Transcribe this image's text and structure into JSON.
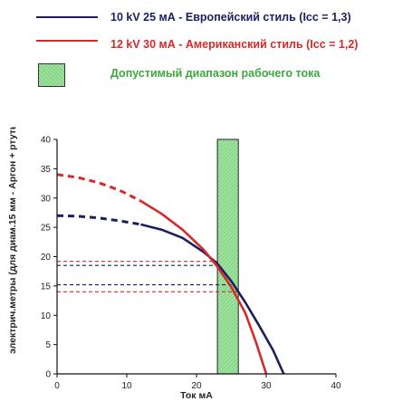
{
  "colors": {
    "european": "#1b1f5e",
    "american": "#d42a2a",
    "range_green": "#3da83d",
    "axis": "#111111"
  },
  "legend": {
    "european": "10 kV 25 мА - Европейский стиль (Icc = 1,3)",
    "american": "12 kV 30 мА - Американский стиль (Icc = 1,2)",
    "range": "Допустимый диапазон рабочего тока"
  },
  "chart_data": {
    "type": "line",
    "xlabel": "Ток мА",
    "ylabel": "электрич.метры (для диам.15 мм - Аргон + ртуть)",
    "xlim": [
      0,
      40
    ],
    "ylim": [
      0,
      40
    ],
    "xticks": [
      0,
      10,
      20,
      30,
      40
    ],
    "yticks": [
      0,
      5,
      10,
      15,
      20,
      25,
      30,
      35,
      40
    ],
    "grid": false,
    "series": [
      {
        "name": "10 kV 25 мА - Европейский стиль (Icc = 1,3)",
        "color": "european",
        "dashed_segment": [
          [
            0,
            27
          ],
          [
            3,
            26.9
          ],
          [
            6,
            26.6
          ],
          [
            9,
            26.1
          ],
          [
            12,
            25.5
          ]
        ],
        "solid_segment": [
          [
            12,
            25.5
          ],
          [
            15,
            24.6
          ],
          [
            18,
            23.2
          ],
          [
            21,
            20.8
          ],
          [
            23,
            18.8
          ],
          [
            25,
            15.8
          ],
          [
            27,
            12.2
          ],
          [
            29,
            8.2
          ],
          [
            31,
            4
          ],
          [
            32.5,
            0
          ]
        ]
      },
      {
        "name": "12 kV 30 мА - Американский стиль (Icc = 1,2)",
        "color": "american",
        "dashed_segment": [
          [
            0,
            34
          ],
          [
            3,
            33.5
          ],
          [
            6,
            32.6
          ],
          [
            9,
            31.3
          ],
          [
            12,
            29.5
          ]
        ],
        "solid_segment": [
          [
            12,
            29.5
          ],
          [
            15,
            27.3
          ],
          [
            18,
            24.6
          ],
          [
            21,
            21.2
          ],
          [
            23,
            18.3
          ],
          [
            25,
            14.8
          ],
          [
            27,
            10.4
          ],
          [
            28.5,
            5.5
          ],
          [
            30,
            0
          ]
        ]
      }
    ],
    "range_band": {
      "x_from": 23,
      "x_to": 26,
      "y_from": 0,
      "y_to": 40
    },
    "reference_lines": [
      {
        "y": 19.2,
        "x_to": 23,
        "color": "american"
      },
      {
        "y": 18.5,
        "x_to": 23,
        "color": "european"
      },
      {
        "y": 15.2,
        "x_to": 25,
        "color": "european"
      },
      {
        "y": 14.0,
        "x_to": 26,
        "color": "american"
      }
    ]
  }
}
